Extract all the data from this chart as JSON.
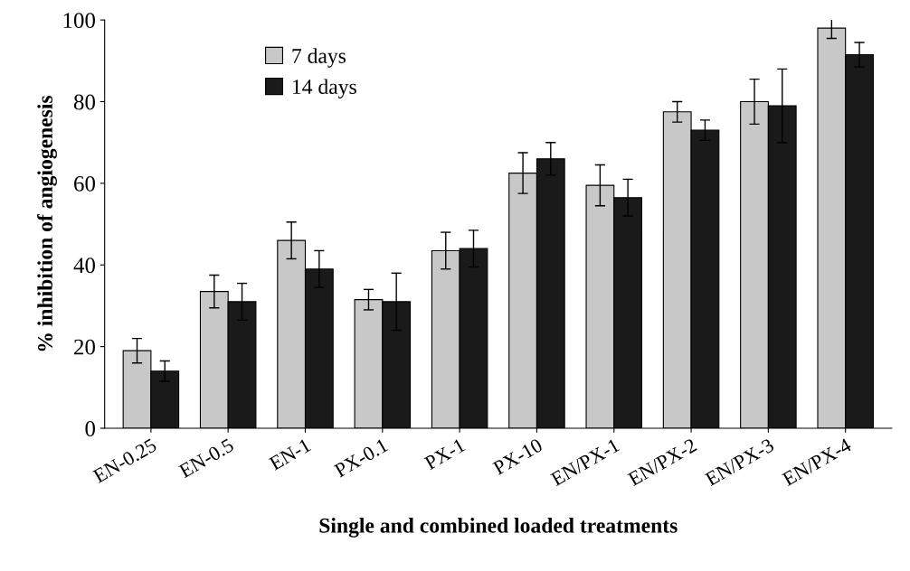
{
  "chart_data": {
    "type": "bar",
    "xlabel": "Single and combined loaded treatments",
    "ylabel": "% inhibition of angiogenesis",
    "categories": [
      "EN-0.25",
      "EN-0.5",
      "EN-1",
      "PX-0.1",
      "PX-1",
      "PX-10",
      "EN/PX-1",
      "EN/PX-2",
      "EN/PX-3",
      "EN/PX-4"
    ],
    "series": [
      {
        "name": "7 days",
        "color": "#c8c8c8",
        "values": [
          19,
          33.5,
          46,
          31.5,
          43.5,
          62.5,
          59.5,
          77.5,
          80,
          98
        ],
        "errors": [
          3,
          4,
          4.5,
          2.5,
          4.5,
          5,
          5,
          2.5,
          5.5,
          2.5
        ]
      },
      {
        "name": "14 days",
        "color": "#1a1a1a",
        "values": [
          14,
          31,
          39,
          31,
          44,
          66,
          56.5,
          73,
          79,
          91.5
        ],
        "errors": [
          2.5,
          4.5,
          4.5,
          7,
          4.5,
          4,
          4.5,
          2.5,
          9,
          3
        ]
      }
    ],
    "ylim": [
      0,
      100
    ],
    "yticks": [
      0,
      20,
      40,
      60,
      80,
      100
    ],
    "grid": false,
    "legend": "top left"
  }
}
